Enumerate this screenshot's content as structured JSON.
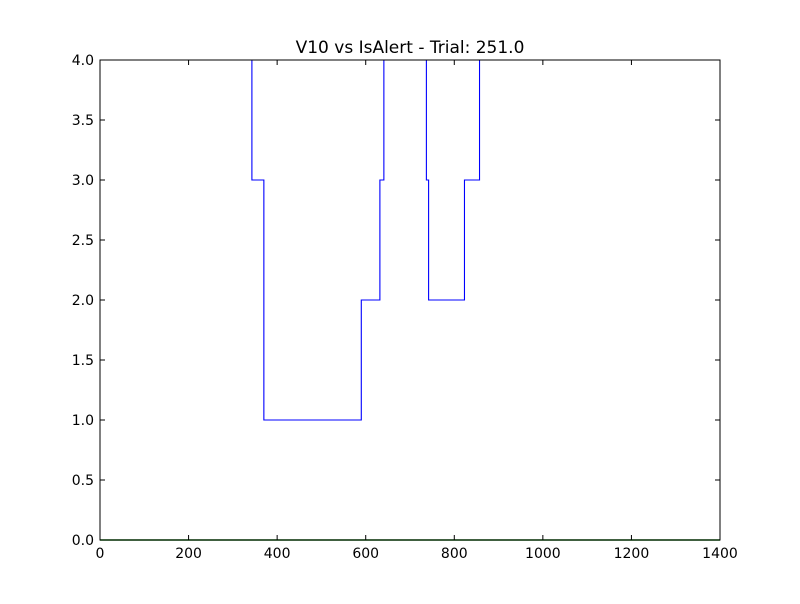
{
  "chart_data": {
    "type": "line",
    "title": "V10 vs IsAlert - Trial: 251.0",
    "xlabel": "",
    "ylabel": "",
    "xlim": [
      0,
      1400
    ],
    "ylim": [
      0.0,
      4.0
    ],
    "x_ticks": [
      "0",
      "200",
      "400",
      "600",
      "800",
      "1000",
      "1200",
      "1400"
    ],
    "y_ticks": [
      "0.0",
      "0.5",
      "1.0",
      "1.5",
      "2.0",
      "2.5",
      "3.0",
      "3.5",
      "4.0"
    ],
    "grid": false,
    "legend": "none",
    "series": [
      {
        "color": "#0000ff",
        "points": [
          [
            340,
            4.0
          ],
          [
            343,
            4.0
          ],
          [
            343,
            3.0
          ],
          [
            370,
            3.0
          ],
          [
            370,
            1.0
          ],
          [
            590,
            1.0
          ],
          [
            590,
            2.0
          ],
          [
            632,
            2.0
          ],
          [
            632,
            3.0
          ],
          [
            641,
            3.0
          ],
          [
            641,
            4.0
          ],
          [
            737,
            4.0
          ],
          [
            737,
            3.0
          ],
          [
            742,
            3.0
          ],
          [
            742,
            2.0
          ],
          [
            823,
            2.0
          ],
          [
            823,
            3.0
          ],
          [
            857,
            3.0
          ],
          [
            857,
            4.0
          ],
          [
            860,
            4.0
          ]
        ]
      },
      {
        "color": "#008000",
        "points": [
          [
            0,
            0.0
          ],
          [
            1400,
            0.0
          ]
        ]
      }
    ]
  }
}
